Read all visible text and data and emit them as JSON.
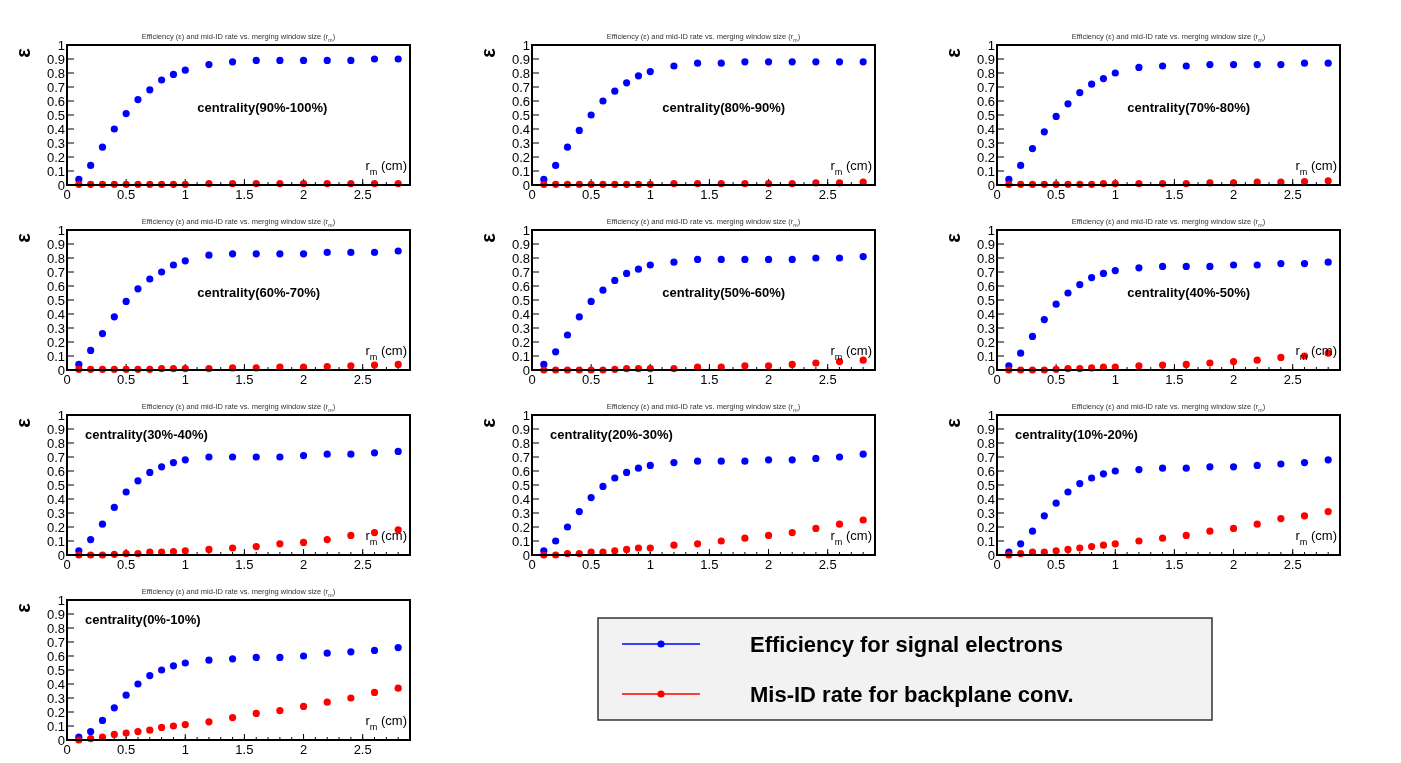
{
  "chart_data": [
    {
      "type": "scatter",
      "title": "Efficiency (ε) and mid-ID rate vs. merging window size (r$_{m}$)",
      "xlabel": "r$_{m}$ (cm)",
      "ylabel": "ε",
      "annotations": [
        "centrality(90%-100%)"
      ],
      "xlim": [
        0,
        2.9
      ],
      "xticks": [
        0,
        0.5,
        1,
        1.5,
        2,
        2.5
      ],
      "ylim": [
        0,
        1
      ],
      "yticks": [
        0,
        0.1,
        0.2,
        0.3,
        0.4,
        0.5,
        0.6,
        0.7,
        0.8,
        0.9,
        1
      ],
      "marker": "circle",
      "x": [
        0.1,
        0.2,
        0.3,
        0.4,
        0.5,
        0.6,
        0.7,
        0.8,
        0.9,
        1.0,
        1.2,
        1.4,
        1.6,
        1.8,
        2.0,
        2.2,
        2.4,
        2.6,
        2.8
      ],
      "series": [
        {
          "color": "#0000ff",
          "values": [
            0.04,
            0.14,
            0.27,
            0.4,
            0.51,
            0.61,
            0.68,
            0.75,
            0.79,
            0.82,
            0.86,
            0.88,
            0.89,
            0.89,
            0.89,
            0.89,
            0.89,
            0.9,
            0.9
          ]
        },
        {
          "color": "#ff0000",
          "values": [
            0.005,
            0.005,
            0.005,
            0.005,
            0.005,
            0.005,
            0.005,
            0.005,
            0.005,
            0.005,
            0.01,
            0.01,
            0.01,
            0.01,
            0.01,
            0.01,
            0.01,
            0.01,
            0.01
          ]
        }
      ]
    },
    {
      "type": "scatter",
      "title": "Efficiency (ε) and mid-ID rate vs. merging window size (r$_{m}$)",
      "xlabel": "r$_{m}$ (cm)",
      "ylabel": "ε",
      "annotations": [
        "centrality(80%-90%)"
      ],
      "xlim": [
        0,
        2.9
      ],
      "xticks": [
        0,
        0.5,
        1,
        1.5,
        2,
        2.5
      ],
      "ylim": [
        0,
        1
      ],
      "yticks": [
        0,
        0.1,
        0.2,
        0.3,
        0.4,
        0.5,
        0.6,
        0.7,
        0.8,
        0.9,
        1
      ],
      "marker": "circle",
      "x": [
        0.1,
        0.2,
        0.3,
        0.4,
        0.5,
        0.6,
        0.7,
        0.8,
        0.9,
        1.0,
        1.2,
        1.4,
        1.6,
        1.8,
        2.0,
        2.2,
        2.4,
        2.6,
        2.8
      ],
      "series": [
        {
          "color": "#0000ff",
          "values": [
            0.04,
            0.14,
            0.27,
            0.39,
            0.5,
            0.6,
            0.67,
            0.73,
            0.78,
            0.81,
            0.85,
            0.87,
            0.87,
            0.88,
            0.88,
            0.88,
            0.88,
            0.88,
            0.88
          ]
        },
        {
          "color": "#ff0000",
          "values": [
            0.005,
            0.005,
            0.005,
            0.005,
            0.005,
            0.005,
            0.005,
            0.005,
            0.005,
            0.005,
            0.01,
            0.01,
            0.01,
            0.01,
            0.01,
            0.01,
            0.015,
            0.015,
            0.02
          ]
        }
      ]
    },
    {
      "type": "scatter",
      "title": "Efficiency (ε) and mid-ID rate vs. merging window size (r$_{m}$)",
      "xlabel": "r$_{m}$ (cm)",
      "ylabel": "ε",
      "annotations": [
        "centrality(70%-80%)"
      ],
      "xlim": [
        0,
        2.9
      ],
      "xticks": [
        0,
        0.5,
        1,
        1.5,
        2,
        2.5
      ],
      "ylim": [
        0,
        1
      ],
      "yticks": [
        0,
        0.1,
        0.2,
        0.3,
        0.4,
        0.5,
        0.6,
        0.7,
        0.8,
        0.9,
        1
      ],
      "marker": "circle",
      "x": [
        0.1,
        0.2,
        0.3,
        0.4,
        0.5,
        0.6,
        0.7,
        0.8,
        0.9,
        1.0,
        1.2,
        1.4,
        1.6,
        1.8,
        2.0,
        2.2,
        2.4,
        2.6,
        2.8
      ],
      "series": [
        {
          "color": "#0000ff",
          "values": [
            0.04,
            0.14,
            0.26,
            0.38,
            0.49,
            0.58,
            0.66,
            0.72,
            0.76,
            0.8,
            0.84,
            0.85,
            0.85,
            0.86,
            0.86,
            0.86,
            0.86,
            0.87,
            0.87
          ]
        },
        {
          "color": "#ff0000",
          "values": [
            0.005,
            0.005,
            0.005,
            0.005,
            0.005,
            0.005,
            0.005,
            0.005,
            0.01,
            0.01,
            0.01,
            0.01,
            0.01,
            0.015,
            0.015,
            0.02,
            0.02,
            0.025,
            0.03
          ]
        }
      ]
    },
    {
      "type": "scatter",
      "title": "Efficiency (ε) and mid-ID rate vs. merging window size (r$_{m}$)",
      "xlabel": "r$_{m}$ (cm)",
      "ylabel": "ε",
      "annotations": [
        "centrality(60%-70%)"
      ],
      "xlim": [
        0,
        2.9
      ],
      "xticks": [
        0,
        0.5,
        1,
        1.5,
        2,
        2.5
      ],
      "ylim": [
        0,
        1
      ],
      "yticks": [
        0,
        0.1,
        0.2,
        0.3,
        0.4,
        0.5,
        0.6,
        0.7,
        0.8,
        0.9,
        1
      ],
      "marker": "circle",
      "x": [
        0.1,
        0.2,
        0.3,
        0.4,
        0.5,
        0.6,
        0.7,
        0.8,
        0.9,
        1.0,
        1.2,
        1.4,
        1.6,
        1.8,
        2.0,
        2.2,
        2.4,
        2.6,
        2.8
      ],
      "series": [
        {
          "color": "#0000ff",
          "values": [
            0.04,
            0.14,
            0.26,
            0.38,
            0.49,
            0.58,
            0.65,
            0.7,
            0.75,
            0.78,
            0.82,
            0.83,
            0.83,
            0.83,
            0.83,
            0.84,
            0.84,
            0.84,
            0.85
          ]
        },
        {
          "color": "#ff0000",
          "values": [
            0.005,
            0.005,
            0.005,
            0.005,
            0.005,
            0.005,
            0.005,
            0.01,
            0.01,
            0.01,
            0.01,
            0.015,
            0.015,
            0.02,
            0.02,
            0.025,
            0.03,
            0.035,
            0.04
          ]
        }
      ]
    },
    {
      "type": "scatter",
      "title": "Efficiency (ε) and mid-ID rate vs. merging window size (r$_{m}$)",
      "xlabel": "r$_{m}$ (cm)",
      "ylabel": "ε",
      "annotations": [
        "centrality(50%-60%)"
      ],
      "xlim": [
        0,
        2.9
      ],
      "xticks": [
        0,
        0.5,
        1,
        1.5,
        2,
        2.5
      ],
      "ylim": [
        0,
        1
      ],
      "yticks": [
        0,
        0.1,
        0.2,
        0.3,
        0.4,
        0.5,
        0.6,
        0.7,
        0.8,
        0.9,
        1
      ],
      "marker": "circle",
      "x": [
        0.1,
        0.2,
        0.3,
        0.4,
        0.5,
        0.6,
        0.7,
        0.8,
        0.9,
        1.0,
        1.2,
        1.4,
        1.6,
        1.8,
        2.0,
        2.2,
        2.4,
        2.6,
        2.8
      ],
      "series": [
        {
          "color": "#0000ff",
          "values": [
            0.04,
            0.13,
            0.25,
            0.38,
            0.49,
            0.57,
            0.64,
            0.69,
            0.72,
            0.75,
            0.77,
            0.79,
            0.79,
            0.79,
            0.79,
            0.79,
            0.8,
            0.8,
            0.81
          ]
        },
        {
          "color": "#ff0000",
          "values": [
            0.0,
            0.0,
            0.0,
            0.0,
            0.0,
            0.0,
            0.005,
            0.01,
            0.01,
            0.01,
            0.01,
            0.02,
            0.02,
            0.03,
            0.03,
            0.04,
            0.05,
            0.06,
            0.07
          ]
        }
      ]
    },
    {
      "type": "scatter",
      "title": "Efficiency (ε) and mid-ID rate vs. merging window size (r$_{m}$)",
      "xlabel": "r$_{m}$ (cm)",
      "ylabel": "ε",
      "annotations": [
        "centrality(40%-50%)"
      ],
      "xlim": [
        0,
        2.9
      ],
      "xticks": [
        0,
        0.5,
        1,
        1.5,
        2,
        2.5
      ],
      "ylim": [
        0,
        1
      ],
      "yticks": [
        0,
        0.1,
        0.2,
        0.3,
        0.4,
        0.5,
        0.6,
        0.7,
        0.8,
        0.9,
        1
      ],
      "marker": "circle",
      "x": [
        0.1,
        0.2,
        0.3,
        0.4,
        0.5,
        0.6,
        0.7,
        0.8,
        0.9,
        1.0,
        1.2,
        1.4,
        1.6,
        1.8,
        2.0,
        2.2,
        2.4,
        2.6,
        2.8
      ],
      "series": [
        {
          "color": "#0000ff",
          "values": [
            0.03,
            0.12,
            0.24,
            0.36,
            0.47,
            0.55,
            0.61,
            0.66,
            0.69,
            0.71,
            0.73,
            0.74,
            0.74,
            0.74,
            0.75,
            0.75,
            0.76,
            0.76,
            0.77
          ]
        },
        {
          "color": "#ff0000",
          "values": [
            0.0,
            0.0,
            0.0,
            0.0,
            0.005,
            0.01,
            0.01,
            0.015,
            0.02,
            0.02,
            0.03,
            0.035,
            0.04,
            0.05,
            0.06,
            0.07,
            0.09,
            0.1,
            0.12
          ]
        }
      ]
    },
    {
      "type": "scatter",
      "title": "Efficiency (ε) and mid-ID rate vs. merging window size (r$_{m}$)",
      "xlabel": "r$_{m}$ (cm)",
      "ylabel": "ε",
      "annotations": [
        "centrality(30%-40%)"
      ],
      "xlim": [
        0,
        2.9
      ],
      "xticks": [
        0,
        0.5,
        1,
        1.5,
        2,
        2.5
      ],
      "ylim": [
        0,
        1
      ],
      "yticks": [
        0,
        0.1,
        0.2,
        0.3,
        0.4,
        0.5,
        0.6,
        0.7,
        0.8,
        0.9,
        1
      ],
      "marker": "circle",
      "x": [
        0.1,
        0.2,
        0.3,
        0.4,
        0.5,
        0.6,
        0.7,
        0.8,
        0.9,
        1.0,
        1.2,
        1.4,
        1.6,
        1.8,
        2.0,
        2.2,
        2.4,
        2.6,
        2.8
      ],
      "series": [
        {
          "color": "#0000ff",
          "values": [
            0.03,
            0.11,
            0.22,
            0.34,
            0.45,
            0.53,
            0.59,
            0.63,
            0.66,
            0.68,
            0.7,
            0.7,
            0.7,
            0.7,
            0.71,
            0.72,
            0.72,
            0.73,
            0.74
          ]
        },
        {
          "color": "#ff0000",
          "values": [
            0.0,
            0.0,
            0.0,
            0.005,
            0.01,
            0.01,
            0.02,
            0.02,
            0.025,
            0.03,
            0.04,
            0.05,
            0.06,
            0.08,
            0.09,
            0.11,
            0.14,
            0.16,
            0.18
          ]
        }
      ]
    },
    {
      "type": "scatter",
      "title": "Efficiency (ε) and mid-ID rate vs. merging window size (r$_{m}$)",
      "xlabel": "r$_{m}$ (cm)",
      "ylabel": "ε",
      "annotations": [
        "centrality(20%-30%)"
      ],
      "xlim": [
        0,
        2.9
      ],
      "xticks": [
        0,
        0.5,
        1,
        1.5,
        2,
        2.5
      ],
      "ylim": [
        0,
        1
      ],
      "yticks": [
        0,
        0.1,
        0.2,
        0.3,
        0.4,
        0.5,
        0.6,
        0.7,
        0.8,
        0.9,
        1
      ],
      "marker": "circle",
      "x": [
        0.1,
        0.2,
        0.3,
        0.4,
        0.5,
        0.6,
        0.7,
        0.8,
        0.9,
        1.0,
        1.2,
        1.4,
        1.6,
        1.8,
        2.0,
        2.2,
        2.4,
        2.6,
        2.8
      ],
      "series": [
        {
          "color": "#0000ff",
          "values": [
            0.03,
            0.1,
            0.2,
            0.31,
            0.41,
            0.49,
            0.55,
            0.59,
            0.62,
            0.64,
            0.66,
            0.67,
            0.67,
            0.67,
            0.68,
            0.68,
            0.69,
            0.7,
            0.72
          ]
        },
        {
          "color": "#ff0000",
          "values": [
            0.0,
            0.0,
            0.01,
            0.01,
            0.02,
            0.02,
            0.03,
            0.04,
            0.05,
            0.05,
            0.07,
            0.08,
            0.1,
            0.12,
            0.14,
            0.16,
            0.19,
            0.22,
            0.25
          ]
        }
      ]
    },
    {
      "type": "scatter",
      "title": "Efficiency (ε) and mid-ID rate vs. merging window size (r$_{m}$)",
      "xlabel": "r$_{m}$ (cm)",
      "ylabel": "ε",
      "annotations": [
        "centrality(10%-20%)"
      ],
      "xlim": [
        0,
        2.9
      ],
      "xticks": [
        0,
        0.5,
        1,
        1.5,
        2,
        2.5
      ],
      "ylim": [
        0,
        1
      ],
      "yticks": [
        0,
        0.1,
        0.2,
        0.3,
        0.4,
        0.5,
        0.6,
        0.7,
        0.8,
        0.9,
        1
      ],
      "marker": "circle",
      "x": [
        0.1,
        0.2,
        0.3,
        0.4,
        0.5,
        0.6,
        0.7,
        0.8,
        0.9,
        1.0,
        1.2,
        1.4,
        1.6,
        1.8,
        2.0,
        2.2,
        2.4,
        2.6,
        2.8
      ],
      "series": [
        {
          "color": "#0000ff",
          "values": [
            0.02,
            0.08,
            0.17,
            0.28,
            0.37,
            0.45,
            0.51,
            0.55,
            0.58,
            0.6,
            0.61,
            0.62,
            0.62,
            0.63,
            0.63,
            0.64,
            0.65,
            0.66,
            0.68
          ]
        },
        {
          "color": "#ff0000",
          "values": [
            0.0,
            0.01,
            0.02,
            0.02,
            0.03,
            0.04,
            0.05,
            0.06,
            0.07,
            0.08,
            0.1,
            0.12,
            0.14,
            0.17,
            0.19,
            0.22,
            0.26,
            0.28,
            0.31
          ]
        }
      ]
    },
    {
      "type": "scatter",
      "title": "Efficiency (ε) and mid-ID rate vs. merging window size (r$_{m}$)",
      "xlabel": "r$_{m}$ (cm)",
      "ylabel": "ε",
      "annotations": [
        "centrality(0%-10%)"
      ],
      "xlim": [
        0,
        2.9
      ],
      "xticks": [
        0,
        0.5,
        1,
        1.5,
        2,
        2.5
      ],
      "ylim": [
        0,
        1
      ],
      "yticks": [
        0,
        0.1,
        0.2,
        0.3,
        0.4,
        0.5,
        0.6,
        0.7,
        0.8,
        0.9,
        1
      ],
      "marker": "circle",
      "legend": "bottom right",
      "x": [
        0.1,
        0.2,
        0.3,
        0.4,
        0.5,
        0.6,
        0.7,
        0.8,
        0.9,
        1.0,
        1.2,
        1.4,
        1.6,
        1.8,
        2.0,
        2.2,
        2.4,
        2.6,
        2.8
      ],
      "series": [
        {
          "name": "Efficiency for signal electrons",
          "color": "#0000ff",
          "values": [
            0.02,
            0.06,
            0.14,
            0.23,
            0.32,
            0.4,
            0.46,
            0.5,
            0.53,
            0.55,
            0.57,
            0.58,
            0.59,
            0.59,
            0.6,
            0.62,
            0.63,
            0.64,
            0.66
          ]
        },
        {
          "name": "Mis-ID rate for backplane conv.",
          "color": "#ff0000",
          "values": [
            0.0,
            0.01,
            0.02,
            0.04,
            0.05,
            0.06,
            0.07,
            0.09,
            0.1,
            0.11,
            0.13,
            0.16,
            0.19,
            0.21,
            0.24,
            0.27,
            0.3,
            0.34,
            0.37
          ]
        }
      ]
    }
  ]
}
